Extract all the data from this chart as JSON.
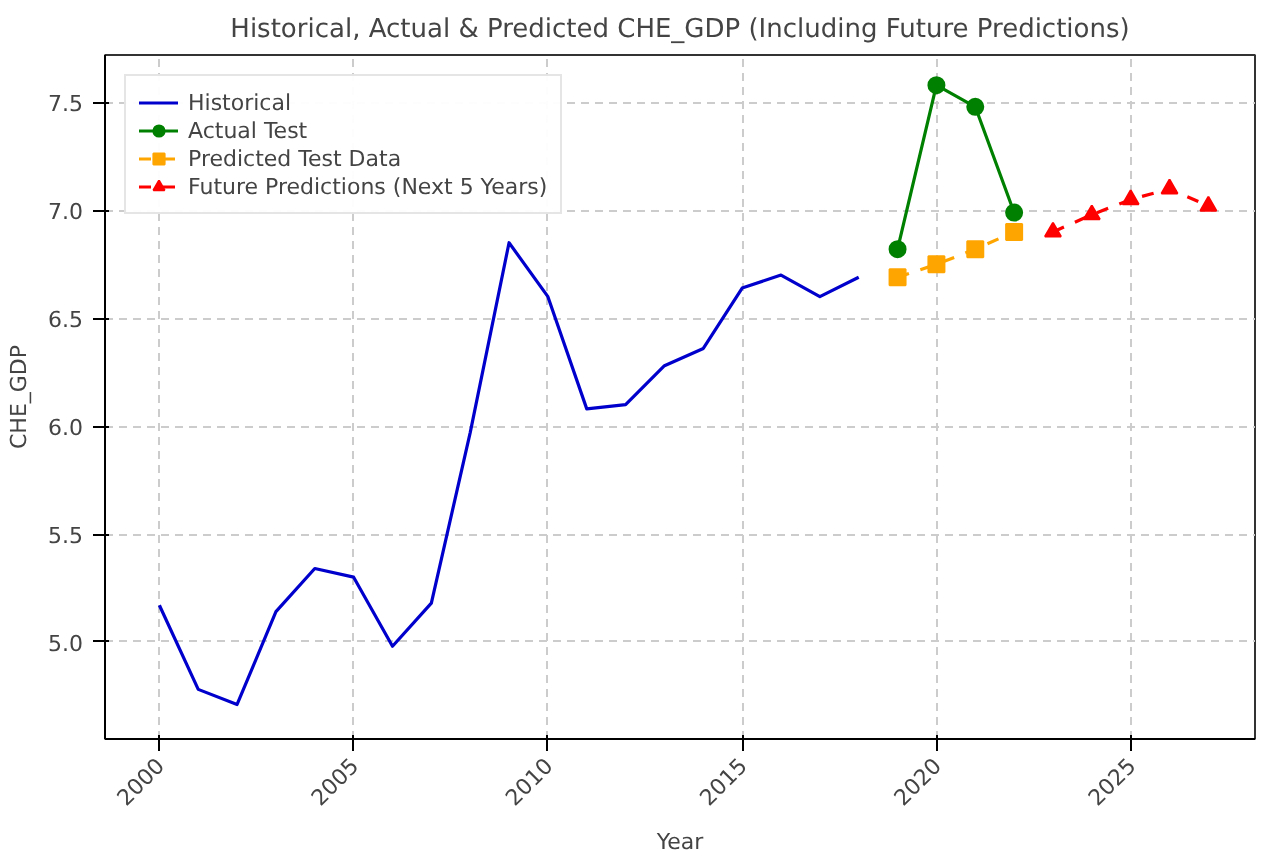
{
  "chart_data": {
    "type": "line",
    "title": "Historical, Actual & Predicted CHE_GDP (Including Future Predictions)",
    "xlabel": "Year",
    "ylabel": "CHE_GDP",
    "xlim": [
      1998.6,
      2028.2
    ],
    "xticks": [
      2000,
      2005,
      2010,
      2015,
      2020,
      2025
    ],
    "ylim": [
      4.55,
      7.72
    ],
    "yticks": [
      {
        "value": 5,
        "label": "5.0"
      },
      5.5,
      {
        "value": 6,
        "label": "6.0"
      },
      6.5,
      {
        "value": 7,
        "label": "7.0"
      },
      7.5
    ],
    "grid": true,
    "legend": "top left",
    "series": [
      {
        "name": "Historical",
        "color": "#0000cc",
        "marker": "none",
        "line_style": "solid",
        "x": [
          2000,
          2001,
          2002,
          2003,
          2004,
          2005,
          2006,
          2007,
          2008,
          2009,
          2010,
          2011,
          2012,
          2013,
          2014,
          2015,
          2016,
          2017,
          2018
        ],
        "values": [
          5.17,
          4.78,
          4.71,
          5.14,
          5.34,
          5.3,
          4.98,
          5.18,
          5.97,
          6.85,
          6.6,
          6.08,
          6.1,
          6.28,
          6.36,
          6.64,
          6.7,
          6.6,
          6.69
        ]
      },
      {
        "name": "Actual Test",
        "color": "#008000",
        "marker": "circle",
        "line_style": "solid",
        "x": [
          2019,
          2020,
          2021,
          2022
        ],
        "values": [
          6.82,
          7.58,
          7.48,
          6.99
        ]
      },
      {
        "name": "Predicted Test Data",
        "color": "#ffa500",
        "marker": "square",
        "line_style": "dashed",
        "x": [
          2019,
          2020,
          2021,
          2022
        ],
        "values": [
          6.69,
          6.75,
          6.82,
          6.9
        ]
      },
      {
        "name": "Future Predictions (Next 5 Years)",
        "color": "#ff0000",
        "marker": "triangle",
        "line_style": "dashed",
        "x": [
          2023,
          2024,
          2025,
          2026,
          2027
        ],
        "values": [
          6.9,
          6.98,
          7.05,
          7.1,
          7.02
        ]
      }
    ]
  }
}
